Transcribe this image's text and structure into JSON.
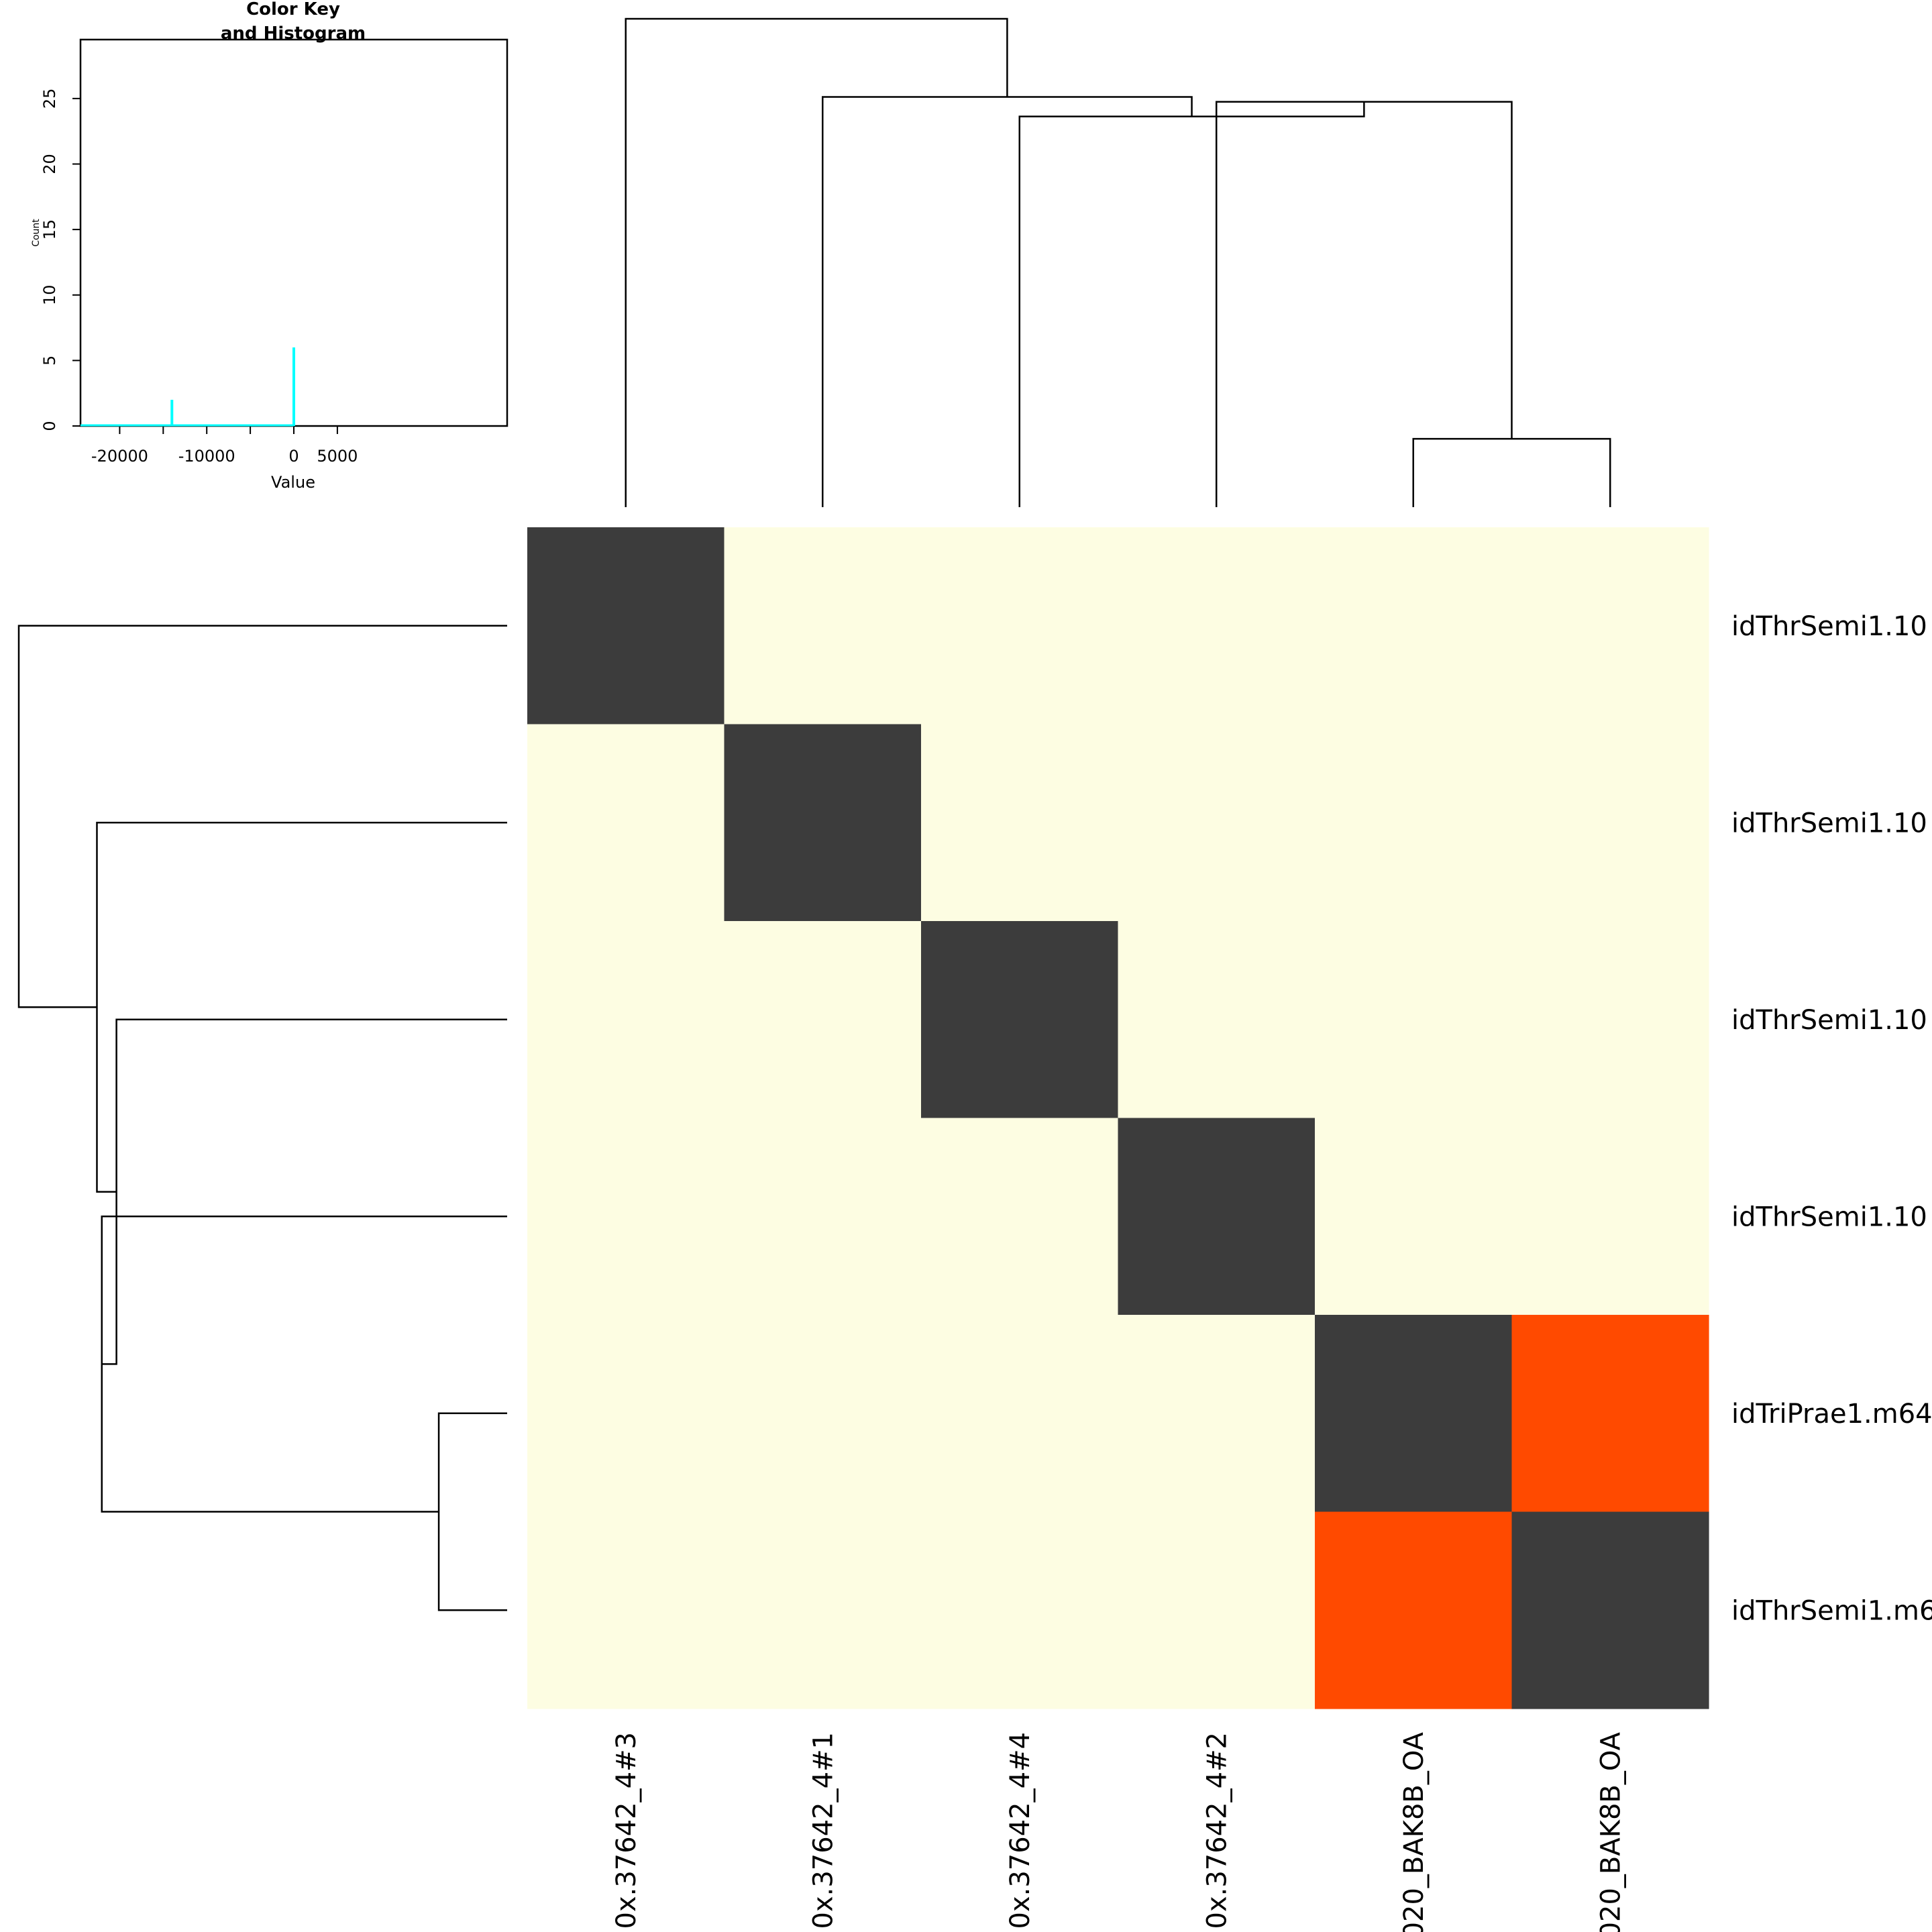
{
  "chart_data": [
    {
      "type": "heatmap",
      "row_labels": [
        "idThrSemi1.10",
        "idThrSemi1.10",
        "idThrSemi1.10",
        "idThrSemi1.10",
        "idTriPrae1.m64",
        "idThrSemi1.m6"
      ],
      "column_labels": [
        "0x.37642_4#3",
        "0x.37642_4#1",
        "0x.37642_4#4",
        "0x.37642_4#2",
        "020_BAK8B_OA",
        "020_BAK8B_OA"
      ],
      "values": [
        [
          0,
          -25000,
          -25000,
          -25000,
          -25000,
          -25000
        ],
        [
          -25000,
          0,
          -25000,
          -25000,
          -25000,
          -25000
        ],
        [
          -25000,
          -25000,
          0,
          -25000,
          -25000,
          -25000
        ],
        [
          -25000,
          -25000,
          -25000,
          0,
          -25000,
          -25000
        ],
        [
          -25000,
          -25000,
          -25000,
          -25000,
          0,
          -14500
        ],
        [
          -25000,
          -25000,
          -25000,
          -25000,
          -14500,
          0
        ]
      ],
      "cell_colors": [
        [
          "#3c3c3c",
          "#fdfde2",
          "#fdfde2",
          "#fdfde2",
          "#fdfde2",
          "#fdfde2"
        ],
        [
          "#fdfde2",
          "#3c3c3c",
          "#fdfde2",
          "#fdfde2",
          "#fdfde2",
          "#fdfde2"
        ],
        [
          "#fdfde2",
          "#fdfde2",
          "#3c3c3c",
          "#fdfde2",
          "#fdfde2",
          "#fdfde2"
        ],
        [
          "#fdfde2",
          "#fdfde2",
          "#fdfde2",
          "#3c3c3c",
          "#fdfde2",
          "#fdfde2"
        ],
        [
          "#fdfde2",
          "#fdfde2",
          "#fdfde2",
          "#fdfde2",
          "#3c3c3c",
          "#ff4a00"
        ],
        [
          "#fdfde2",
          "#fdfde2",
          "#fdfde2",
          "#fdfde2",
          "#ff4a00",
          "#3c3c3c"
        ]
      ],
      "dendrogram_merges": [
        {
          "left": 4,
          "right": 5,
          "height": 0.14
        },
        {
          "left": 3,
          "right": [
            4,
            5
          ],
          "height": 0.83
        },
        {
          "left": 2,
          "right": [
            3,
            4,
            5
          ],
          "height": 0.8
        },
        {
          "left": 1,
          "right": [
            2,
            3,
            4,
            5
          ],
          "height": 0.84
        },
        {
          "left": 0,
          "right": [
            1,
            2,
            3,
            4,
            5
          ],
          "height": 1.0
        }
      ],
      "legend_placement": "top-left"
    },
    {
      "type": "bar",
      "title": "Color Key\nand Histogram",
      "title_lines": [
        "Color Key",
        "and Histogram"
      ],
      "xlabel": "Value",
      "ylabel": "Count",
      "xlim": [
        -24500,
        24500
      ],
      "ylim": [
        0,
        29.5
      ],
      "x_ticks": [
        -20000,
        -15000,
        -10000,
        -5000,
        0,
        5000
      ],
      "x_tick_labels": [
        "-20000",
        "",
        "-10000",
        "",
        "0",
        "5000"
      ],
      "y_ticks": [
        0,
        5,
        10,
        15,
        20,
        25
      ],
      "y_tick_labels": [
        "0",
        "5",
        "10",
        "15",
        "20",
        "25"
      ],
      "x": [
        -14000,
        0
      ],
      "values": [
        2,
        6
      ],
      "histogram_color": "#00ffff"
    }
  ]
}
